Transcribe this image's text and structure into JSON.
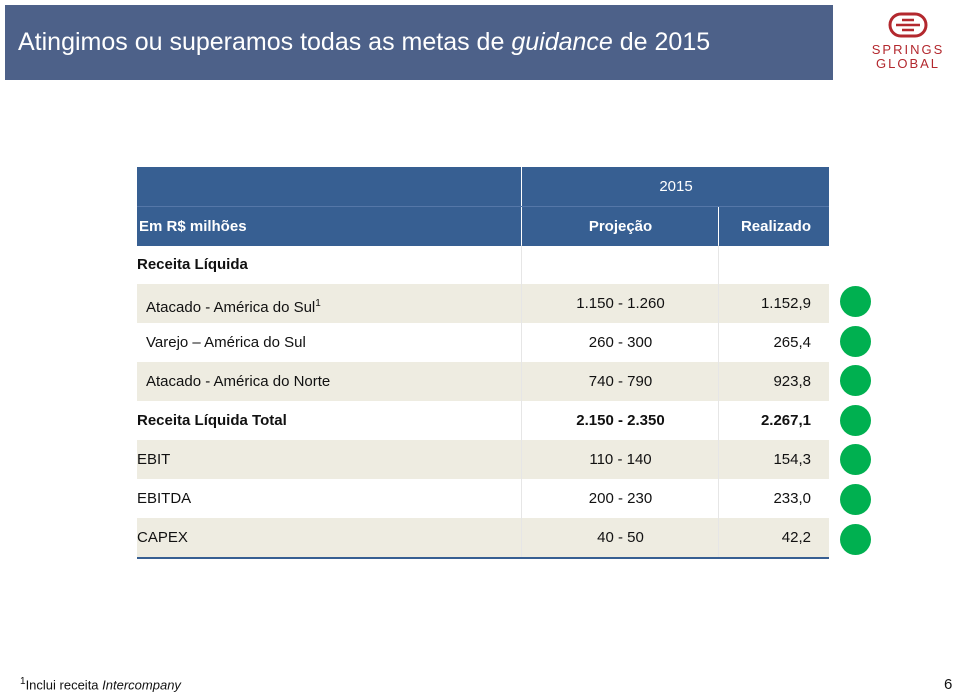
{
  "header": {
    "title_parts": [
      "Atingimos ou superamos todas as metas de",
      "guidance",
      "de 2015"
    ],
    "logo": [
      "SPRINGS",
      "GLOBAL"
    ]
  },
  "table": {
    "year": "2015",
    "columns": [
      "Em R$ milhões",
      "Projeção",
      "Realizado"
    ],
    "section": "Receita Líquida",
    "rows": [
      [
        "Atacado - América do Sul",
        "1.150 - 1.260",
        "1.152,9"
      ],
      [
        "Varejo – América do Sul",
        "260 - 300",
        "265,4"
      ],
      [
        "Atacado - América do Norte",
        "740 - 790",
        "923,8"
      ],
      [
        "Receita Líquida Total",
        "2.150 - 2.350",
        "2.267,1"
      ],
      [
        "EBIT",
        "110 - 140",
        "154,3"
      ],
      [
        "EBITDA",
        "200 - 230",
        "233,0"
      ],
      [
        "CAPEX",
        "40 - 50",
        "42,2"
      ]
    ],
    "first_row_superscript": "1"
  },
  "footnote": {
    "marker": "1",
    "text": "Inclui receita",
    "italic": "Intercompany"
  },
  "page_number": "6"
}
